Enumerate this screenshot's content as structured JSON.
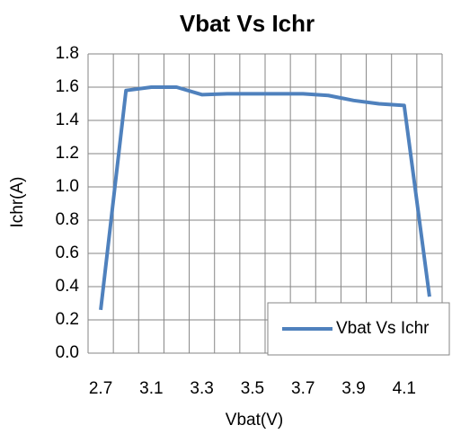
{
  "chart_data": {
    "type": "line",
    "title": "Vbat Vs Ichr",
    "x_label": "Vbat(V)",
    "y_label": "Ichr(A)",
    "categories": [
      "2.7",
      null,
      "3.1",
      null,
      "3.3",
      null,
      "3.5",
      null,
      "3.7",
      null,
      "3.9",
      null,
      "4.1",
      null
    ],
    "series": [
      {
        "name": "Vbat Vs Ichr",
        "color": "#4f81bd",
        "values": [
          0.26,
          1.58,
          1.6,
          1.6,
          1.555,
          1.56,
          1.56,
          1.56,
          1.56,
          1.55,
          1.52,
          1.5,
          1.49,
          0.34
        ]
      }
    ],
    "ylim": [
      0,
      1.8
    ],
    "yticks": [
      {
        "value": 0,
        "label": "0.0"
      },
      0.2,
      0.4,
      0.6,
      0.8,
      {
        "value": 1,
        "label": "1.0"
      },
      1.2,
      1.4,
      1.6,
      1.8
    ],
    "grid": true,
    "legend": "lower right"
  }
}
